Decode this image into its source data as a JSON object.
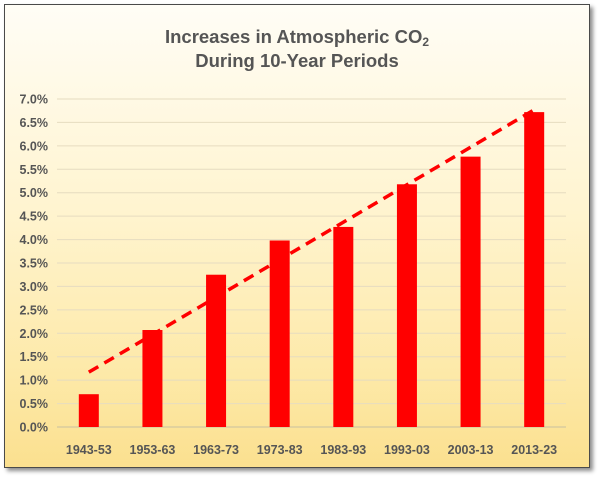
{
  "chart_data": {
    "type": "bar",
    "title_line1": "Increases in Atmospheric CO",
    "title_subscript": "2",
    "title_line2": "During 10-Year Periods",
    "xlabel": "",
    "ylabel": "",
    "categories": [
      "1943-53",
      "1953-63",
      "1963-73",
      "1973-83",
      "1983-93",
      "1993-03",
      "2003-13",
      "2013-23"
    ],
    "series": [
      {
        "values": [
          0.7,
          2.07,
          3.25,
          3.98,
          4.27,
          5.18,
          5.77,
          6.72
        ],
        "color": "#ff0000"
      }
    ],
    "trendline": {
      "style": "dashed",
      "color": "#ff0000",
      "start": 1.17,
      "end": 6.77
    },
    "ylim": [
      0,
      7.0
    ],
    "yticks": [
      "0.0%",
      "0.5%",
      "1.0%",
      "1.5%",
      "2.0%",
      "2.5%",
      "3.0%",
      "3.5%",
      "4.0%",
      "4.5%",
      "5.0%",
      "5.5%",
      "6.0%",
      "6.5%",
      "7.0%"
    ],
    "grid": true,
    "legend": "none",
    "background": "#fff1c6"
  }
}
